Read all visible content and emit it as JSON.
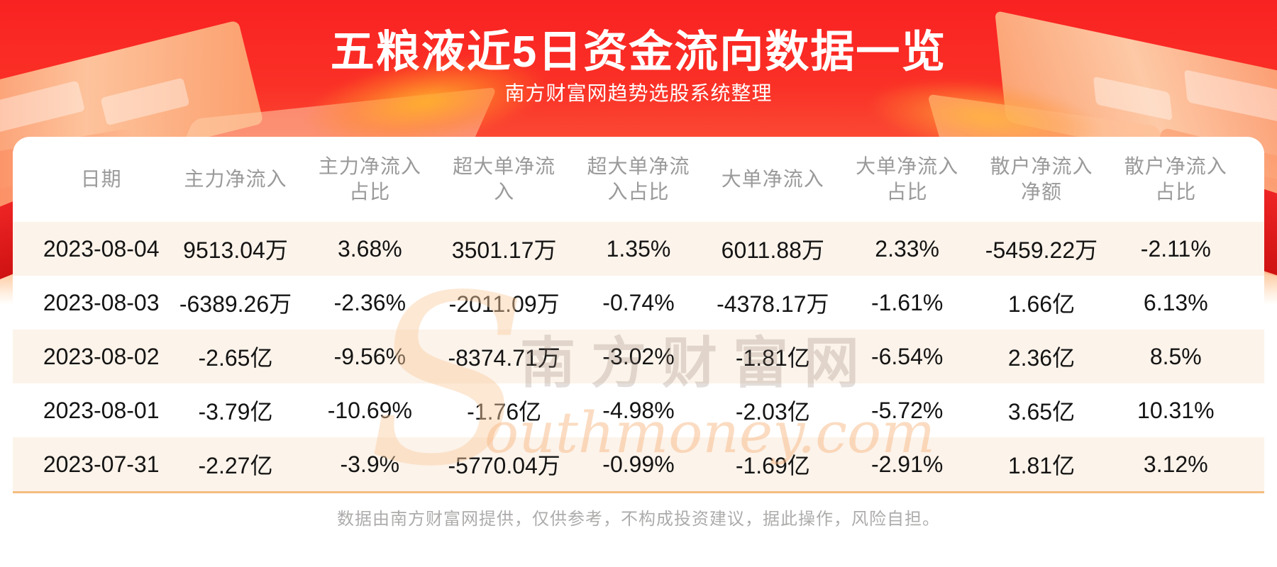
{
  "header": {
    "title": "五粮液近5日资金流向数据一览",
    "subtitle": "南方财富网趋势选股系统整理"
  },
  "chart_data": {
    "type": "table",
    "title": "五粮液近5日资金流向数据一览",
    "columns": [
      "日期",
      "主力净流入",
      "主力净流入占比",
      "超大单净流入",
      "超大单净流入占比",
      "大单净流入",
      "大单净流入占比",
      "散户净流入净额",
      "散户净流入占比"
    ],
    "rows": [
      [
        "2023-08-04",
        "9513.04万",
        "3.68%",
        "3501.17万",
        "1.35%",
        "6011.88万",
        "2.33%",
        "-5459.22万",
        "-2.11%"
      ],
      [
        "2023-08-03",
        "-6389.26万",
        "-2.36%",
        "-2011.09万",
        "-0.74%",
        "-4378.17万",
        "-1.61%",
        "1.66亿",
        "6.13%"
      ],
      [
        "2023-08-02",
        "-2.65亿",
        "-9.56%",
        "-8374.71万",
        "-3.02%",
        "-1.81亿",
        "-6.54%",
        "2.36亿",
        "8.5%"
      ],
      [
        "2023-08-01",
        "-3.79亿",
        "-10.69%",
        "-1.76亿",
        "-4.98%",
        "-2.03亿",
        "-5.72%",
        "3.65亿",
        "10.31%"
      ],
      [
        "2023-07-31",
        "-2.27亿",
        "-3.9%",
        "-5770.04万",
        "-0.99%",
        "-1.69亿",
        "-2.91%",
        "1.81亿",
        "3.12%"
      ]
    ]
  },
  "watermark": {
    "cn": "南方财富网",
    "en_initial": "S",
    "en_rest": "outhmoney.com"
  },
  "footer": {
    "disclaimer": "数据由南方财富网提供，仅供参考，不构成投资建议，据此操作，风险自担。"
  },
  "colors": {
    "banner_red_top": "#f92222",
    "banner_orange_bottom": "#fd9f72",
    "card_background": "#ffffff",
    "row_stripe": "#fcf3ea",
    "divider_orange": "#f4bd7f",
    "header_text_gray": "#9a9a9a",
    "cell_text_dark": "#141414",
    "footer_gray": "#aeacab",
    "title_white": "#ffffff"
  }
}
